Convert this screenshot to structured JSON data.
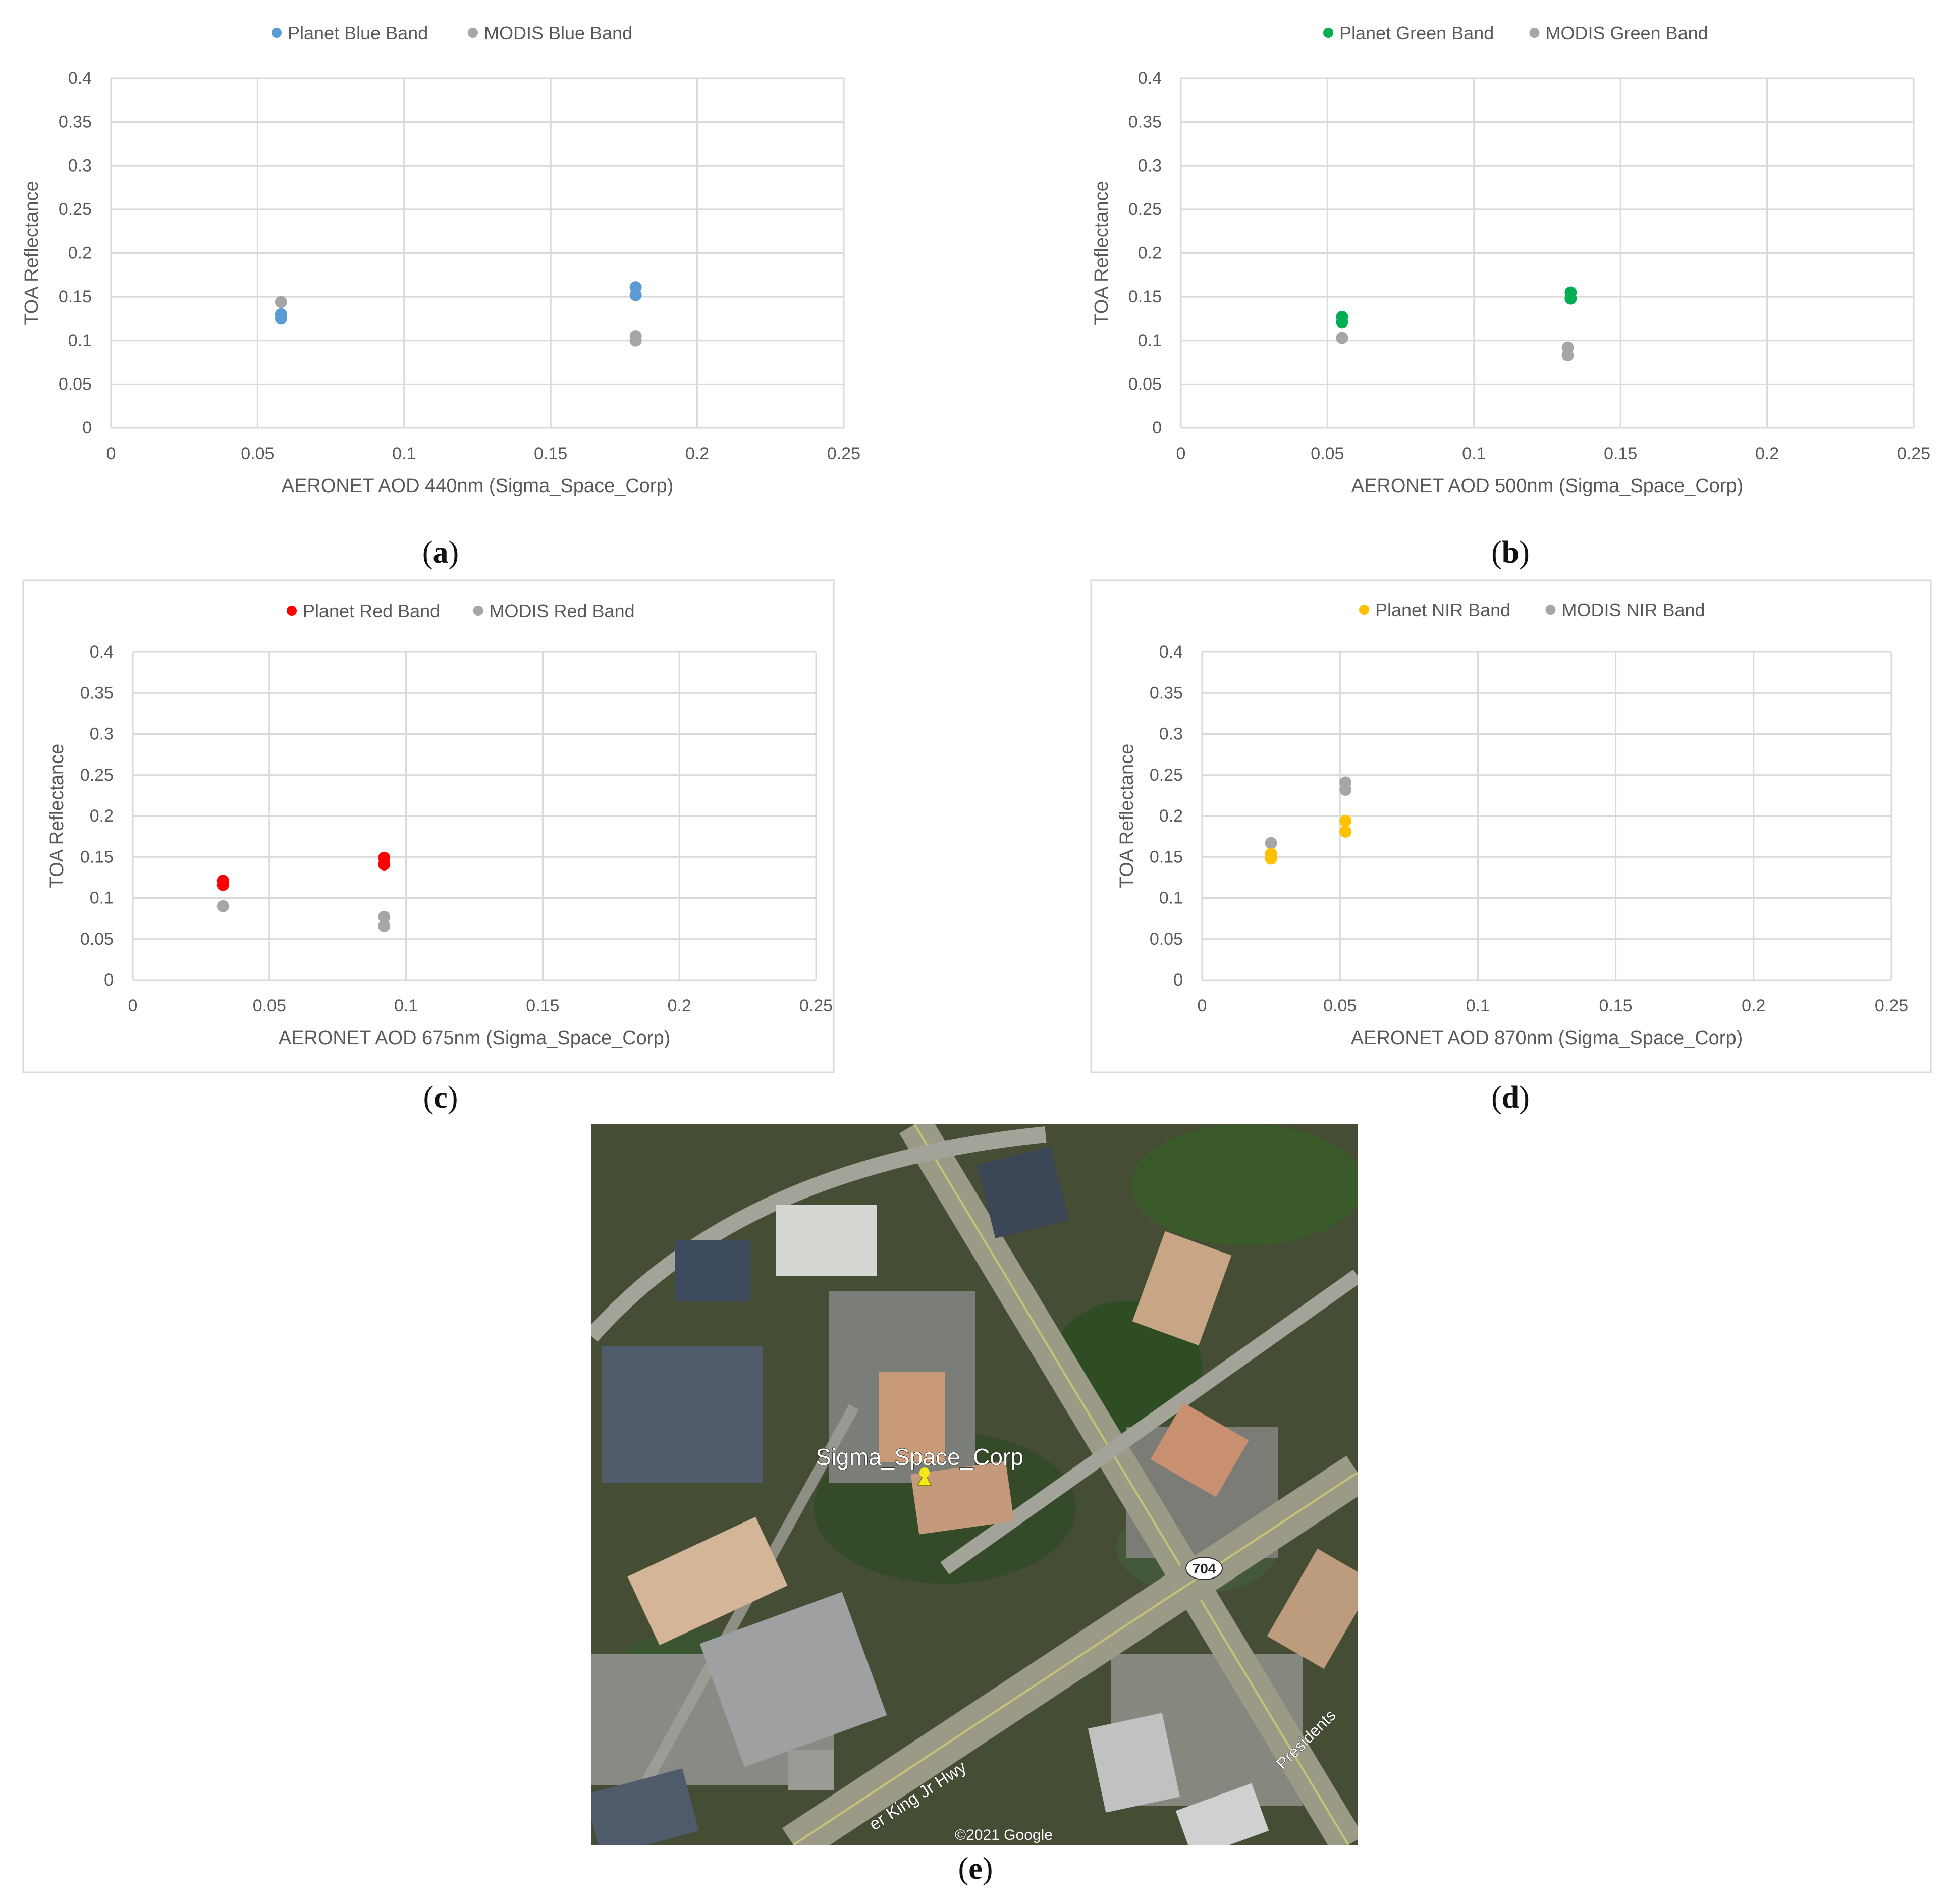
{
  "colors": {
    "blue": "#5b9bd5",
    "green": "#00b050",
    "red": "#ff0000",
    "yellow": "#ffc000",
    "gray": "#a6a6a6",
    "grid": "#d9d9d9",
    "text": "#595959"
  },
  "panel_labels": {
    "a": "a",
    "b": "b",
    "c": "c",
    "d": "d",
    "e": "e"
  },
  "chart_data": [
    {
      "id": "a",
      "type": "scatter",
      "xlabel": "AERONET AOD 440nm (Sigma_Space_Corp)",
      "ylabel": "TOA Reflectance",
      "xlim": [
        0,
        0.25
      ],
      "ylim": [
        0,
        0.4
      ],
      "xticks": [
        "0",
        "0.05",
        "0.1",
        "0.15",
        "0.2",
        "0.25"
      ],
      "yticks": [
        "0",
        "0.05",
        "0.1",
        "0.15",
        "0.2",
        "0.25",
        "0.3",
        "0.35",
        "0.4"
      ],
      "grid": true,
      "legend_position": "top",
      "border": false,
      "series": [
        {
          "name": "Planet Blue Band",
          "color": "#5b9bd5",
          "points": [
            [
              0.058,
              0.125
            ],
            [
              0.058,
              0.13
            ],
            [
              0.179,
              0.152
            ],
            [
              0.179,
              0.161
            ]
          ]
        },
        {
          "name": "MODIS Blue Band",
          "color": "#a6a6a6",
          "points": [
            [
              0.058,
              0.144
            ],
            [
              0.179,
              0.1
            ],
            [
              0.179,
              0.105
            ]
          ]
        }
      ]
    },
    {
      "id": "b",
      "type": "scatter",
      "xlabel": "AERONET AOD 500nm (Sigma_Space_Corp)",
      "ylabel": "TOA Reflectance",
      "xlim": [
        0,
        0.25
      ],
      "ylim": [
        0,
        0.4
      ],
      "xticks": [
        "0",
        "0.05",
        "0.1",
        "0.15",
        "0.2",
        "0.25"
      ],
      "yticks": [
        "0",
        "0.05",
        "0.1",
        "0.15",
        "0.2",
        "0.25",
        "0.3",
        "0.35",
        "0.4"
      ],
      "grid": true,
      "legend_position": "top",
      "border": false,
      "series": [
        {
          "name": "Planet Green Band",
          "color": "#00b050",
          "points": [
            [
              0.055,
              0.121
            ],
            [
              0.055,
              0.127
            ],
            [
              0.133,
              0.148
            ],
            [
              0.133,
              0.155
            ]
          ]
        },
        {
          "name": "MODIS Green Band",
          "color": "#a6a6a6",
          "points": [
            [
              0.055,
              0.103
            ],
            [
              0.132,
              0.083
            ],
            [
              0.132,
              0.092
            ]
          ]
        }
      ]
    },
    {
      "id": "c",
      "type": "scatter",
      "xlabel": "AERONET AOD 675nm (Sigma_Space_Corp)",
      "ylabel": "TOA Reflectance",
      "xlim": [
        0,
        0.25
      ],
      "ylim": [
        0,
        0.4
      ],
      "xticks": [
        "0",
        "0.05",
        "0.1",
        "0.15",
        "0.2",
        "0.25"
      ],
      "yticks": [
        "0",
        "0.05",
        "0.1",
        "0.15",
        "0.2",
        "0.25",
        "0.3",
        "0.35",
        "0.4"
      ],
      "grid": true,
      "legend_position": "top",
      "border": true,
      "series": [
        {
          "name": "Planet Red Band",
          "color": "#ff0000",
          "points": [
            [
              0.033,
              0.116
            ],
            [
              0.033,
              0.121
            ],
            [
              0.092,
              0.141
            ],
            [
              0.092,
              0.149
            ]
          ]
        },
        {
          "name": "MODIS Red Band",
          "color": "#a6a6a6",
          "points": [
            [
              0.033,
              0.09
            ],
            [
              0.092,
              0.066
            ],
            [
              0.092,
              0.077
            ]
          ]
        }
      ]
    },
    {
      "id": "d",
      "type": "scatter",
      "xlabel": "AERONET AOD 870nm (Sigma_Space_Corp)",
      "ylabel": "TOA Reflectance",
      "xlim": [
        0,
        0.25
      ],
      "ylim": [
        0,
        0.4
      ],
      "xticks": [
        "0",
        "0.05",
        "0.1",
        "0.15",
        "0.2",
        "0.25"
      ],
      "yticks": [
        "0",
        "0.05",
        "0.1",
        "0.15",
        "0.2",
        "0.25",
        "0.3",
        "0.35",
        "0.4"
      ],
      "grid": true,
      "legend_position": "top",
      "border": true,
      "series": [
        {
          "name": "Planet NIR Band",
          "color": "#ffc000",
          "points": [
            [
              0.025,
              0.148
            ],
            [
              0.025,
              0.154
            ],
            [
              0.052,
              0.181
            ],
            [
              0.052,
              0.194
            ]
          ]
        },
        {
          "name": "MODIS NIR Band",
          "color": "#a6a6a6",
          "points": [
            [
              0.025,
              0.167
            ],
            [
              0.052,
              0.232
            ],
            [
              0.052,
              0.241
            ]
          ]
        }
      ]
    }
  ],
  "map": {
    "place_label": "Sigma_Space_Corp",
    "route_shield": "704",
    "road_label_1": "er King Jr Hwy",
    "road_label_2": "Presidents",
    "copyright": "©2021 Google"
  }
}
